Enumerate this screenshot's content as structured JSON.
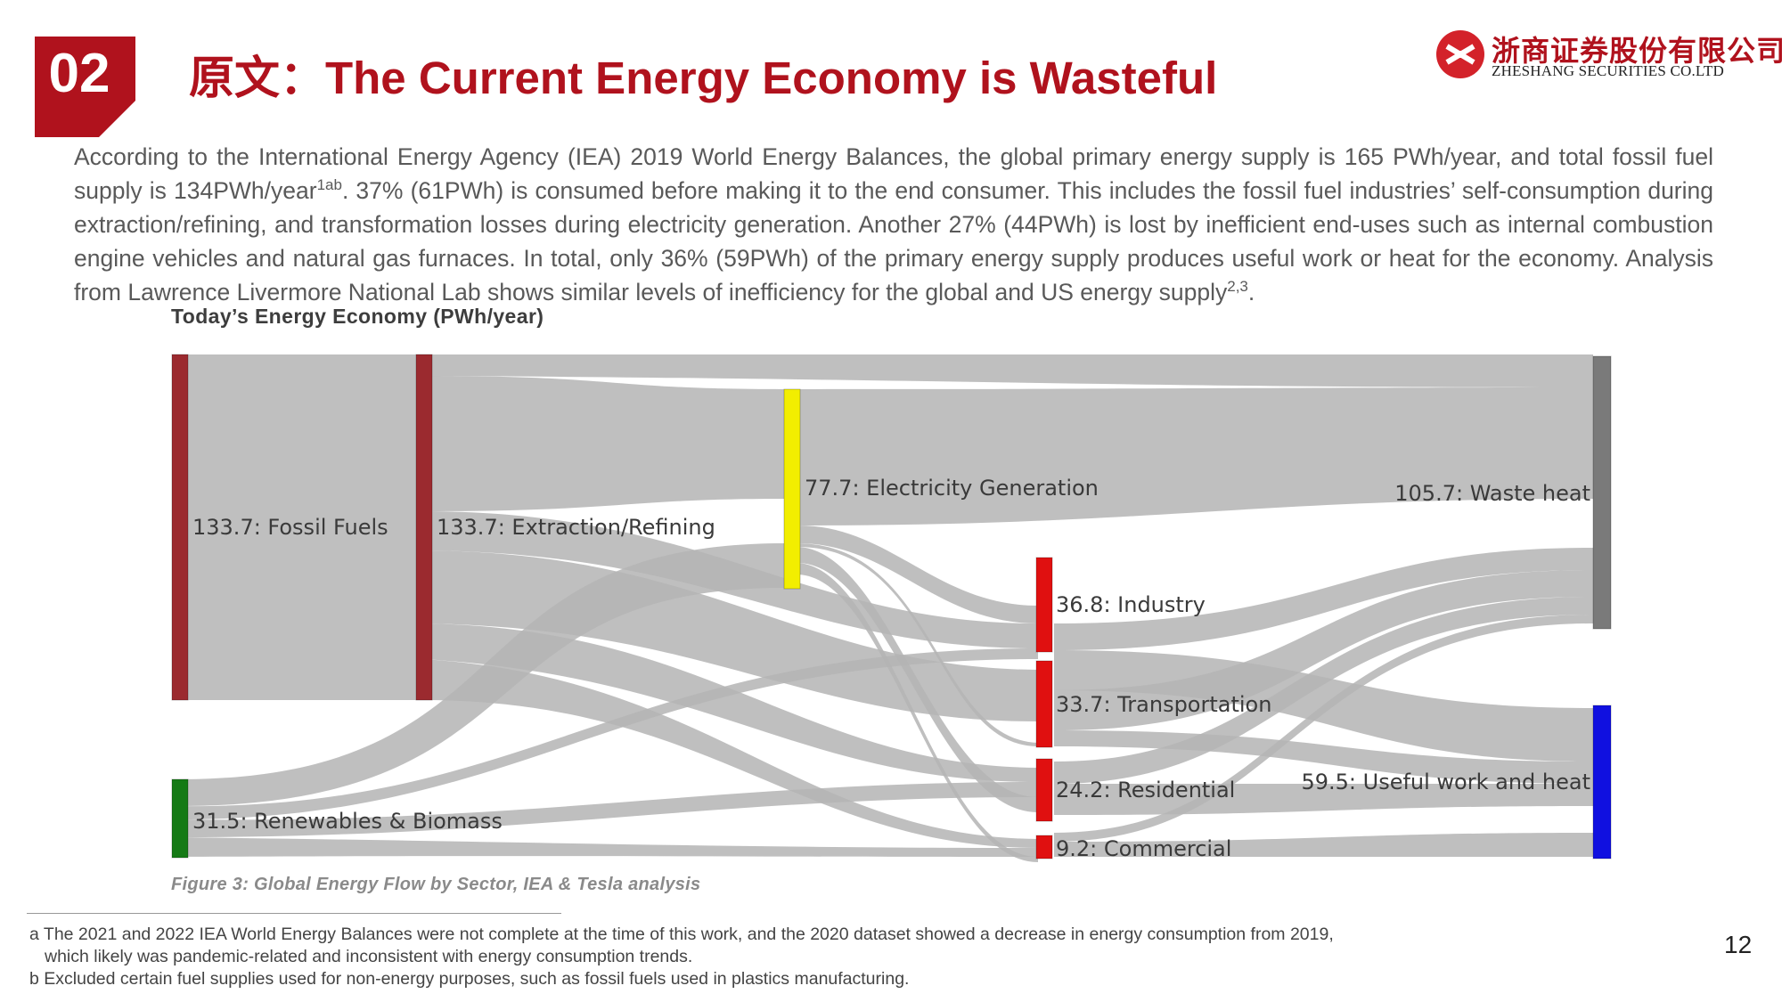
{
  "header": {
    "badge": "02",
    "title": "原文：The Current Energy Economy is Wasteful",
    "logo_cn": "浙商证券股份有限公司",
    "logo_en": "ZHESHANG SECURITIES CO.LTD"
  },
  "body": {
    "p1": "According to the International Energy Agency (IEA) 2019 World Energy Balances, the global primary energy supply is 165 PWh/year, and total fossil fuel supply is 134PWh/year",
    "sup1": "1ab",
    "p2": ". 37% (61PWh) is consumed before making it to the end consumer. This includes the fossil fuel industries’ self-consumption during extraction/refining, and transformation losses during electricity generation. Another 27% (44PWh) is lost by inefficient end-uses such as internal combustion engine vehicles and natural gas furnaces. In total, only 36% (59PWh) of the primary energy supply produces useful work or heat for the economy. Analysis from Lawrence Livermore National Lab shows similar levels of inefficiency for the global and US energy supply",
    "sup2": "2,3",
    "p3": "."
  },
  "chart_data": {
    "type": "sankey",
    "title": "Today’s Energy Economy (PWh/year)",
    "caption": "Figure 3: Global Energy Flow by Sector, IEA & Tesla analysis",
    "nodes": [
      {
        "id": "fossil",
        "label": "133.7: Fossil Fuels",
        "value": 133.7,
        "color": "#9b2a2f"
      },
      {
        "id": "renew",
        "label": "31.5: Renewables & Biomass",
        "value": 31.5,
        "color": "#157a15"
      },
      {
        "id": "extract",
        "label": "133.7: Extraction/Refining",
        "value": 133.7,
        "color": "#9b2a2f"
      },
      {
        "id": "elec",
        "label": "77.7: Electricity Generation",
        "value": 77.7,
        "color": "#f2ee00"
      },
      {
        "id": "industry",
        "label": "36.8: Industry",
        "value": 36.8,
        "color": "#e01010"
      },
      {
        "id": "transport",
        "label": "33.7: Transportation",
        "value": 33.7,
        "color": "#e01010"
      },
      {
        "id": "residential",
        "label": "24.2: Residential",
        "value": 24.2,
        "color": "#e01010"
      },
      {
        "id": "commercial",
        "label": "9.2: Commercial",
        "value": 9.2,
        "color": "#e01010"
      },
      {
        "id": "waste",
        "label": "105.7: Waste heat",
        "value": 105.7,
        "color": "#7a7a7a"
      },
      {
        "id": "useful",
        "label": "59.5: Useful work and heat",
        "value": 59.5,
        "color": "#1010e0"
      }
    ]
  },
  "footnotes": {
    "a1": "a The 2021 and 2022 IEA World Energy Balances were not complete at the time of this work, and the 2020 dataset showed a decrease in energy consumption from 2019,",
    "a2": "which likely was pandemic-related and inconsistent with energy consumption trends.",
    "b": "b Excluded certain fuel supplies used for non-energy purposes, such as fossil fuels used in plastics manufacturing."
  },
  "page_number": "12",
  "colors": {
    "accent": "#b0121d",
    "link": "#b4b4b4"
  }
}
